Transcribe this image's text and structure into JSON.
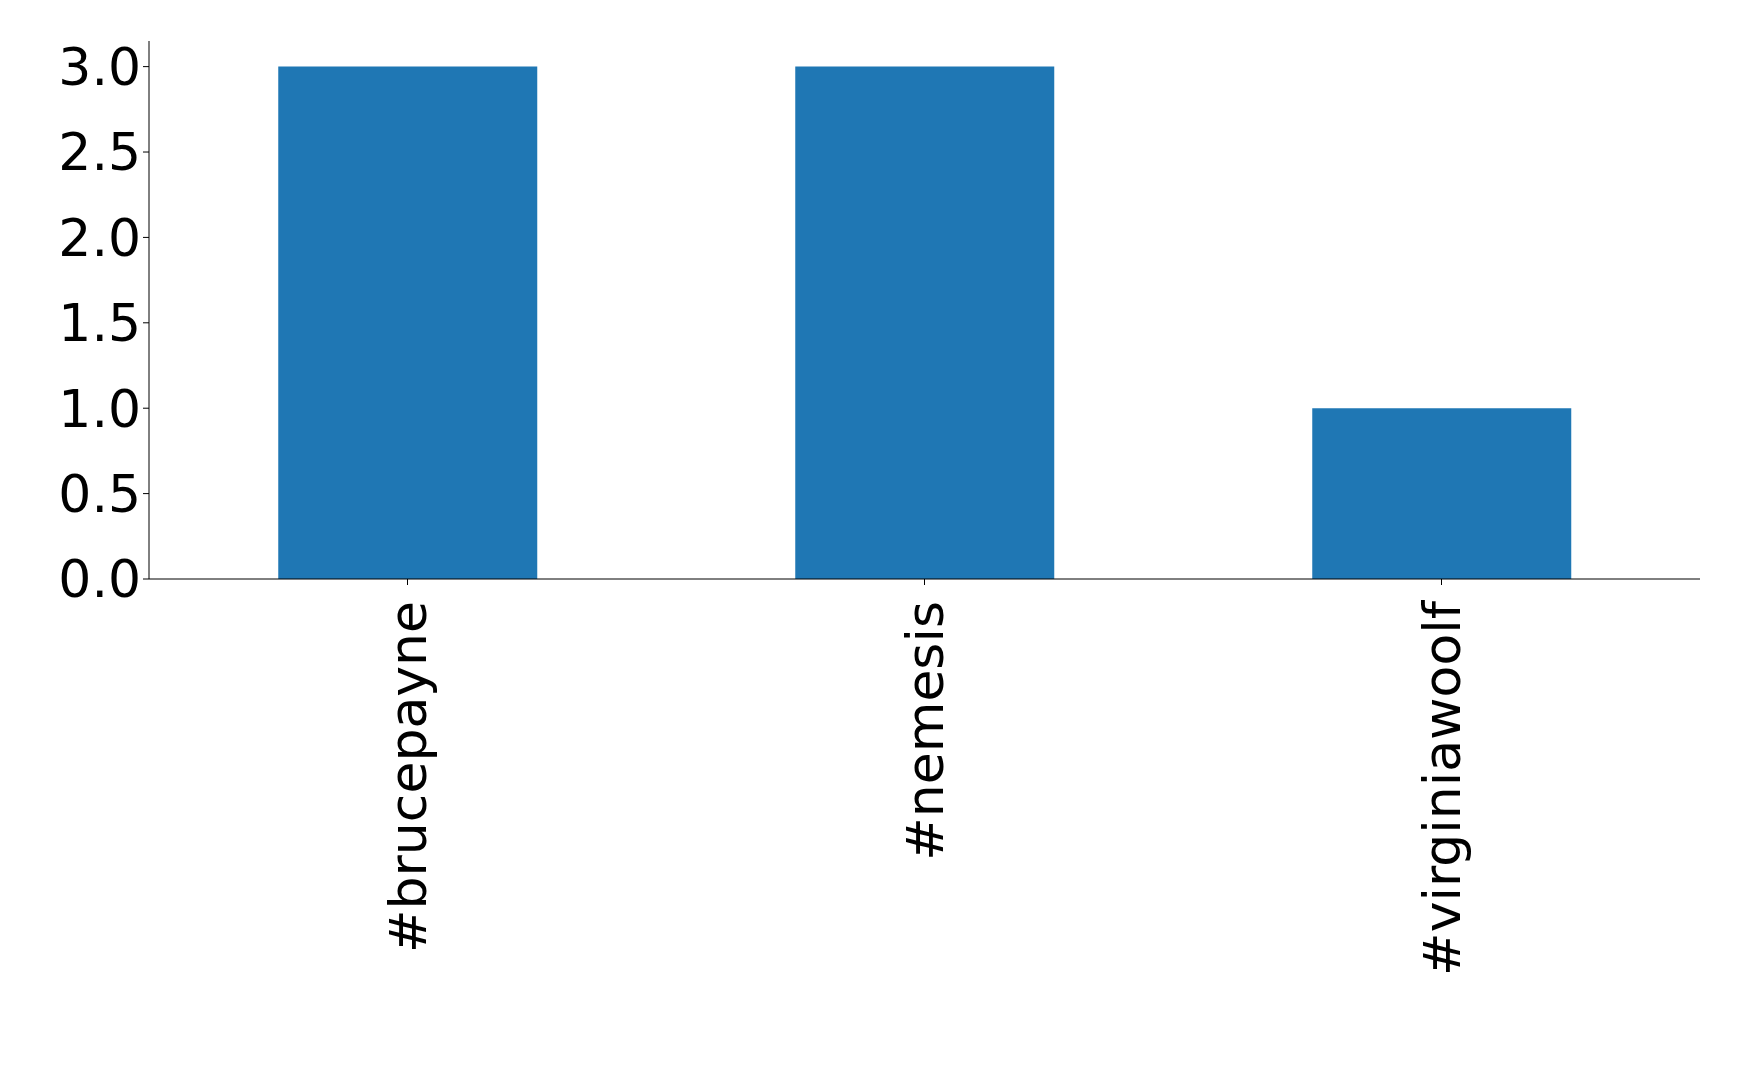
{
  "chart_data": {
    "type": "bar",
    "categories": [
      "#brucepayne",
      "#nemesis",
      "#virginiawoolf"
    ],
    "values": [
      3,
      3,
      1
    ],
    "color": "#1f77b4",
    "ylim": [
      0,
      3.15
    ],
    "yticks": [
      {
        "value": 0,
        "label": "0.0"
      },
      {
        "value": 0.5,
        "label": "0.5"
      },
      {
        "value": 1,
        "label": "1.0"
      },
      {
        "value": 1.5,
        "label": "1.5"
      },
      {
        "value": 2,
        "label": "2.0"
      },
      {
        "value": 2.5,
        "label": "2.5"
      },
      {
        "value": 3,
        "label": "3.0"
      }
    ],
    "grid": false,
    "legend": false
  }
}
